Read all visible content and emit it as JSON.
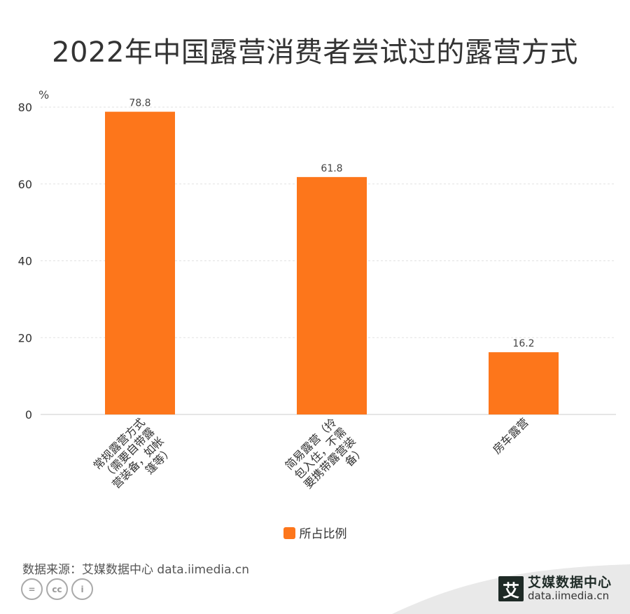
{
  "title": "2022年中国露营消费者尝试过的露营方式",
  "unit_label": "%",
  "legend_label": "所占比例",
  "source_text": "数据来源：艾媒数据中心 data.iimedia.cn",
  "brand": {
    "logo_char": "艾",
    "name": "艾媒数据中心",
    "url": "data.iimedia.cn"
  },
  "colors": {
    "bar": "#fd761b",
    "grid": "#e2e2e2",
    "axis": "#cccccc"
  },
  "chart_data": {
    "type": "bar",
    "categories": [
      "常规露营方式（需要自带露营装备，如帐篷等）",
      "简易露营（拎包入住，不需要携带露营装备）",
      "房车露营"
    ],
    "series": [
      {
        "name": "所占比例",
        "values": [
          78.8,
          61.8,
          16.2
        ]
      }
    ],
    "data_labels": [
      "78.8",
      "61.8",
      "16.2"
    ],
    "yticks": [
      0,
      20,
      40,
      60,
      80
    ],
    "ylim": [
      0,
      80
    ],
    "ylabel": "%",
    "grid": true,
    "legend_position": "bottom"
  }
}
